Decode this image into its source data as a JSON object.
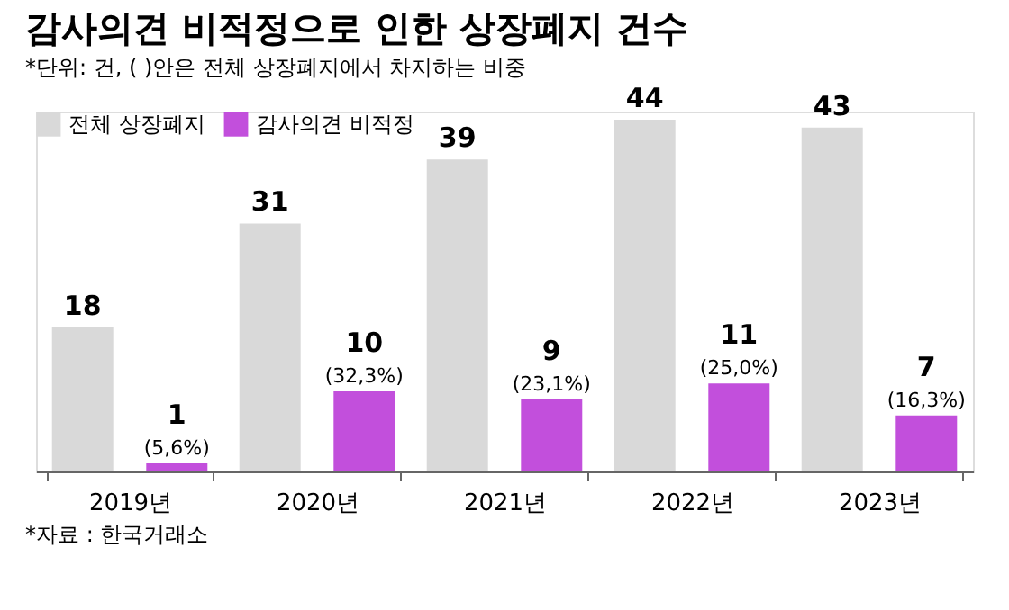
{
  "chart_data": {
    "type": "bar",
    "title": "감사의견 비적정으로 인한 상장폐지 건수",
    "subtitle": "*단위: 건, ( )안은 전체 상장폐지에서 차지하는 비중",
    "categories": [
      "2019년",
      "2020년",
      "2021년",
      "2022년",
      "2023년"
    ],
    "series": [
      {
        "name": "전체 상장폐지",
        "color": "#d9d9d9",
        "values": [
          18,
          31,
          39,
          44,
          43
        ]
      },
      {
        "name": "감사의견 비적정",
        "color": "#c24fdc",
        "values": [
          1,
          10,
          9,
          11,
          7
        ]
      }
    ],
    "data_labels": true,
    "legend": "top left",
    "grid": false,
    "annotations": [
      "(5,6%)",
      "(32,3%)",
      "(23,1%)",
      "(25,0%)",
      "(16,3%)",
      "*자료 :  한국거래소"
    ]
  }
}
